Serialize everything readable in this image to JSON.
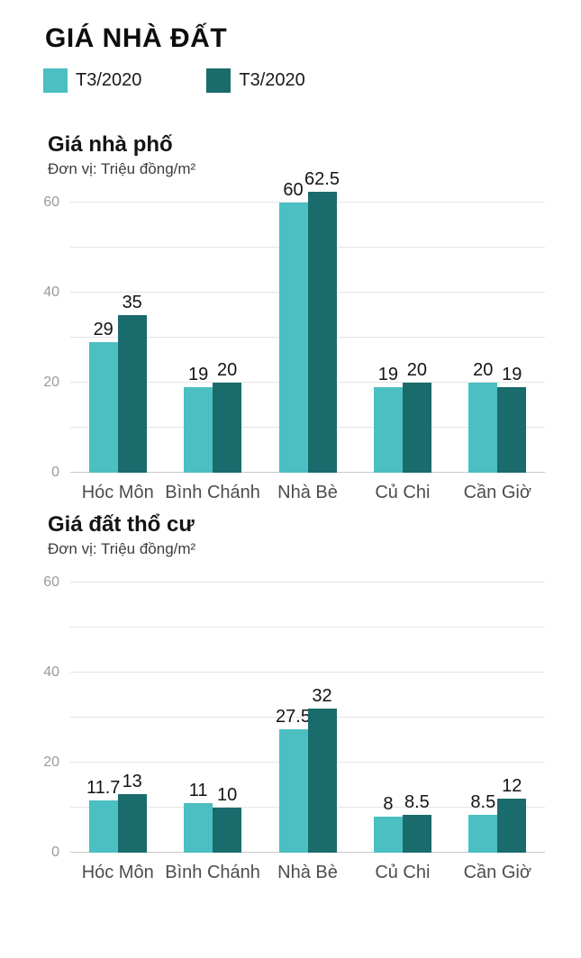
{
  "page": {
    "title": "GIÁ NHÀ ĐẤT"
  },
  "legend": [
    {
      "label": "T3/2020",
      "color": "#4bbfc1"
    },
    {
      "label": "T3/2020",
      "color": "#1a6b6c"
    }
  ],
  "colors": {
    "series1": "#4bbfc1",
    "series2": "#1a6b6c",
    "grid": "#e4e4e4",
    "baseline": "#c8c8c8",
    "ytick_text": "#9a9a9a",
    "category_text": "#4d4d4d",
    "value_text": "#141414"
  },
  "chart_data": [
    {
      "type": "bar",
      "title": "Giá nhà phố",
      "subtitle": "Đơn vị: Triệu đồng/m²",
      "categories": [
        "Hóc Môn",
        "Bình Chánh",
        "Nhà Bè",
        "Củ Chi",
        "Cần Giờ"
      ],
      "series": [
        {
          "name": "T3/2020",
          "values": [
            29,
            19,
            60,
            19,
            20
          ]
        },
        {
          "name": "T3/2020",
          "values": [
            35,
            20,
            62.5,
            20,
            19
          ]
        }
      ],
      "ylim": [
        0,
        60
      ],
      "ytick_step": 10,
      "ylabel_every": 20,
      "yticks_labeled": [
        0,
        20,
        40,
        60
      ],
      "grid": true,
      "legend_position": "top-shared"
    },
    {
      "type": "bar",
      "title": "Giá đất thổ cư",
      "subtitle": "Đơn vị: Triệu đồng/m²",
      "categories": [
        "Hóc Môn",
        "Bình Chánh",
        "Nhà Bè",
        "Củ Chi",
        "Cần Giờ"
      ],
      "series": [
        {
          "name": "T3/2020",
          "values": [
            11.7,
            11,
            27.5,
            8,
            8.5
          ]
        },
        {
          "name": "T3/2020",
          "values": [
            13,
            10,
            32,
            8.5,
            12
          ]
        }
      ],
      "ylim": [
        0,
        60
      ],
      "ytick_step": 10,
      "ylabel_every": 20,
      "yticks_labeled": [
        0,
        20,
        40,
        60
      ],
      "grid": true,
      "legend_position": "top-shared"
    }
  ]
}
